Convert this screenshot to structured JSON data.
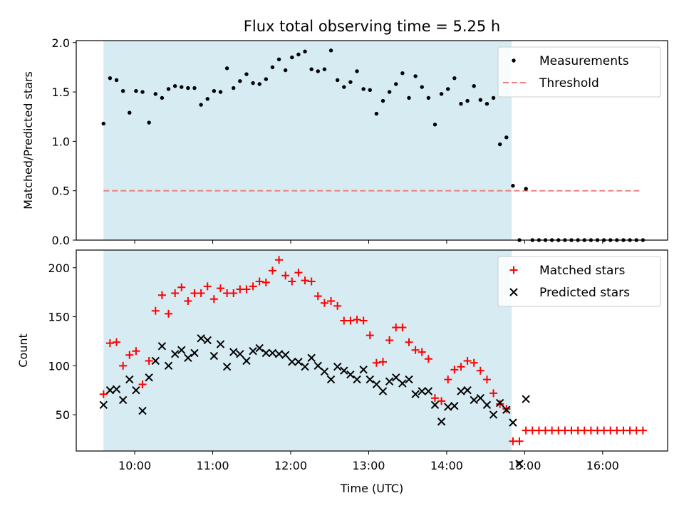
{
  "chart_data": [
    {
      "type": "scatter",
      "title": "Flux total observing time = 5.25 h",
      "xlabel": "",
      "ylabel": "Matched/Predicted stars",
      "xlim": [
        "09:15",
        "16:50"
      ],
      "ylim": [
        0.0,
        2.02
      ],
      "yticks": [
        "0.0",
        "0.5",
        "1.0",
        "1.5",
        "2.0"
      ],
      "xticks": [
        "10:00",
        "11:00",
        "12:00",
        "13:00",
        "14:00",
        "15:00",
        "16:00"
      ],
      "highlight_span": [
        "09:36",
        "14:50"
      ],
      "legend": {
        "position": "top-right",
        "entries": [
          "Measurements",
          "Threshold"
        ]
      },
      "threshold": {
        "name": "Threshold",
        "value": 0.5,
        "x": [
          "09:36",
          "16:30"
        ],
        "color": "#f08080"
      },
      "series": [
        {
          "name": "Measurements",
          "x": [
            "09:36",
            "09:41",
            "09:46",
            "09:51",
            "09:56",
            "10:01",
            "10:06",
            "10:11",
            "10:16",
            "10:21",
            "10:26",
            "10:31",
            "10:36",
            "10:41",
            "10:46",
            "10:51",
            "10:56",
            "11:01",
            "11:06",
            "11:11",
            "11:16",
            "11:21",
            "11:26",
            "11:31",
            "11:36",
            "11:41",
            "11:46",
            "11:51",
            "11:56",
            "12:01",
            "12:06",
            "12:11",
            "12:16",
            "12:21",
            "12:26",
            "12:31",
            "12:36",
            "12:41",
            "12:46",
            "12:51",
            "12:56",
            "13:01",
            "13:06",
            "13:11",
            "13:16",
            "13:21",
            "13:26",
            "13:31",
            "13:36",
            "13:41",
            "13:46",
            "13:51",
            "13:56",
            "14:01",
            "14:06",
            "14:11",
            "14:16",
            "14:21",
            "14:26",
            "14:31",
            "14:36",
            "14:41",
            "14:46",
            "14:51",
            "14:56",
            "15:01",
            "15:06",
            "15:11",
            "15:16",
            "15:21",
            "15:26",
            "15:31",
            "15:36",
            "15:41",
            "15:46",
            "15:51",
            "15:56",
            "16:01",
            "16:06",
            "16:11",
            "16:16",
            "16:21",
            "16:26",
            "16:31"
          ],
          "y": [
            1.18,
            1.64,
            1.62,
            1.51,
            1.29,
            1.51,
            1.5,
            1.19,
            1.48,
            1.44,
            1.53,
            1.56,
            1.55,
            1.54,
            1.54,
            1.37,
            1.43,
            1.51,
            1.5,
            1.74,
            1.54,
            1.61,
            1.68,
            1.59,
            1.58,
            1.63,
            1.75,
            1.83,
            1.72,
            1.85,
            1.88,
            1.91,
            1.73,
            1.71,
            1.73,
            1.92,
            1.62,
            1.55,
            1.6,
            1.71,
            1.53,
            1.52,
            1.28,
            1.41,
            1.5,
            1.58,
            1.69,
            1.44,
            1.66,
            1.55,
            1.44,
            1.17,
            1.48,
            1.53,
            1.64,
            1.38,
            1.41,
            1.56,
            1.42,
            1.38,
            1.44,
            0.97,
            1.04,
            0.55,
            0.0,
            0.52,
            0.0,
            0.0,
            0.0,
            0.0,
            0.0,
            0.0,
            0.0,
            0.0,
            0.0,
            0.0,
            0.0,
            0.0,
            0.0,
            0.0,
            0.0,
            0.0,
            0.0,
            0.0
          ],
          "color": "#000000",
          "marker": "dot"
        }
      ]
    },
    {
      "type": "scatter",
      "title": "",
      "xlabel": "Time (UTC)",
      "ylabel": "Count",
      "xlim": [
        "09:15",
        "16:50"
      ],
      "ylim": [
        13,
        218
      ],
      "yticks": [
        "50",
        "100",
        "150",
        "200"
      ],
      "xticks": [
        "10:00",
        "11:00",
        "12:00",
        "13:00",
        "14:00",
        "15:00",
        "16:00"
      ],
      "highlight_span": [
        "09:36",
        "14:50"
      ],
      "legend": {
        "position": "top-right",
        "entries": [
          "Matched stars",
          "Predicted stars"
        ]
      },
      "series": [
        {
          "name": "Matched stars",
          "x": [
            "09:36",
            "09:41",
            "09:46",
            "09:51",
            "09:56",
            "10:01",
            "10:06",
            "10:11",
            "10:16",
            "10:21",
            "10:26",
            "10:31",
            "10:36",
            "10:41",
            "10:46",
            "10:51",
            "10:56",
            "11:01",
            "11:06",
            "11:11",
            "11:16",
            "11:21",
            "11:26",
            "11:31",
            "11:36",
            "11:41",
            "11:46",
            "11:51",
            "11:56",
            "12:01",
            "12:06",
            "12:11",
            "12:16",
            "12:21",
            "12:26",
            "12:31",
            "12:36",
            "12:41",
            "12:46",
            "12:51",
            "12:56",
            "13:01",
            "13:06",
            "13:11",
            "13:16",
            "13:21",
            "13:26",
            "13:31",
            "13:36",
            "13:41",
            "13:46",
            "13:51",
            "13:56",
            "14:01",
            "14:06",
            "14:11",
            "14:16",
            "14:21",
            "14:26",
            "14:31",
            "14:36",
            "14:41",
            "14:46",
            "14:51",
            "14:56",
            "15:01",
            "15:06",
            "15:11",
            "15:16",
            "15:21",
            "15:26",
            "15:31",
            "15:36",
            "15:41",
            "15:46",
            "15:51",
            "15:56",
            "16:01",
            "16:06",
            "16:11",
            "16:16",
            "16:21",
            "16:26",
            "16:31"
          ],
          "y": [
            71,
            123,
            124,
            100,
            111,
            115,
            81,
            105,
            156,
            172,
            153,
            174,
            180,
            166,
            174,
            174,
            181,
            168,
            179,
            174,
            174,
            178,
            178,
            181,
            186,
            185,
            197,
            208,
            192,
            186,
            195,
            187,
            186,
            171,
            164,
            166,
            161,
            146,
            146,
            147,
            146,
            131,
            103,
            104,
            126,
            139,
            139,
            124,
            116,
            114,
            107,
            67,
            64,
            86,
            96,
            99,
            105,
            103,
            95,
            86,
            72,
            61,
            56,
            23,
            23,
            34,
            34,
            34,
            34,
            34,
            34,
            34,
            34,
            34,
            34,
            34,
            34,
            34,
            34,
            34,
            34,
            34,
            34,
            34
          ],
          "color": "#ff0000",
          "marker": "plus"
        },
        {
          "name": "Predicted stars",
          "x": [
            "09:36",
            "09:41",
            "09:46",
            "09:51",
            "09:56",
            "10:01",
            "10:06",
            "10:11",
            "10:16",
            "10:21",
            "10:26",
            "10:31",
            "10:36",
            "10:41",
            "10:46",
            "10:51",
            "10:56",
            "11:01",
            "11:06",
            "11:11",
            "11:16",
            "11:21",
            "11:26",
            "11:31",
            "11:36",
            "11:41",
            "11:46",
            "11:51",
            "11:56",
            "12:01",
            "12:06",
            "12:11",
            "12:16",
            "12:21",
            "12:26",
            "12:31",
            "12:36",
            "12:41",
            "12:46",
            "12:51",
            "12:56",
            "13:01",
            "13:06",
            "13:11",
            "13:16",
            "13:21",
            "13:26",
            "13:31",
            "13:36",
            "13:41",
            "13:46",
            "13:51",
            "13:56",
            "14:01",
            "14:06",
            "14:11",
            "14:16",
            "14:21",
            "14:26",
            "14:31",
            "14:36",
            "14:41",
            "14:46",
            "14:51",
            "14:56",
            "15:01"
          ],
          "y": [
            60,
            75,
            76,
            65,
            86,
            75,
            54,
            88,
            105,
            120,
            100,
            112,
            116,
            108,
            113,
            128,
            126,
            110,
            122,
            99,
            114,
            112,
            105,
            115,
            118,
            113,
            113,
            112,
            111,
            104,
            104,
            99,
            108,
            100,
            94,
            86,
            99,
            95,
            91,
            86,
            96,
            86,
            81,
            74,
            84,
            88,
            82,
            86,
            71,
            74,
            74,
            60,
            43,
            58,
            59,
            74,
            75,
            65,
            67,
            60,
            50,
            62,
            55,
            42,
            0,
            66
          ],
          "color": "#000000",
          "marker": "x"
        }
      ]
    }
  ]
}
